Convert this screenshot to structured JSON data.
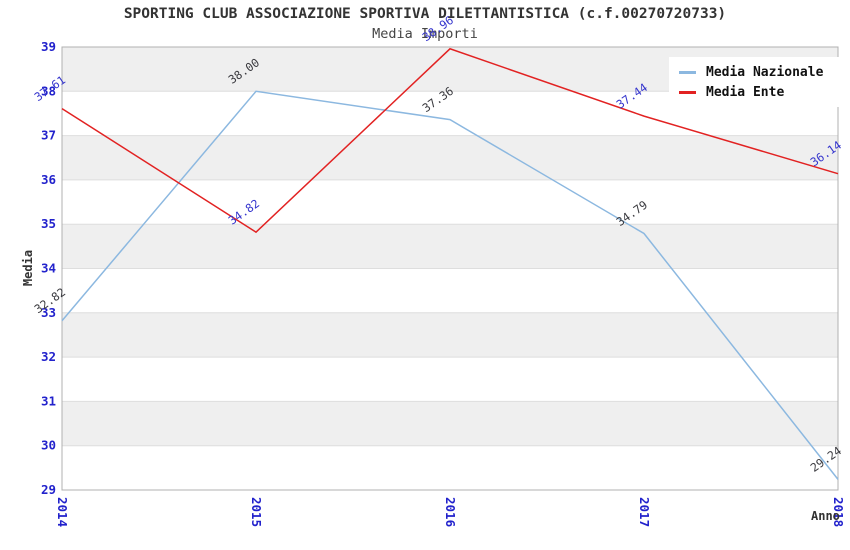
{
  "title": "SPORTING CLUB ASSOCIAZIONE SPORTIVA DILETTANTISTICA (c.f.00270720733)",
  "subtitle": "Media Importi",
  "axes": {
    "x_label": "Anno",
    "y_label": "Media"
  },
  "legend": {
    "position": "top-right",
    "items": [
      {
        "label": "Media Nazionale",
        "color": "#8cb8e0"
      },
      {
        "label": "Media Ente",
        "color": "#e22222"
      }
    ]
  },
  "chart_data": {
    "type": "line",
    "title": "SPORTING CLUB ASSOCIAZIONE SPORTIVA DILETTANTISTICA (c.f.00270720733)",
    "subtitle": "Media Importi",
    "xlabel": "Anno",
    "ylabel": "Media",
    "x": [
      "2014",
      "2015",
      "2016",
      "2017",
      "2018"
    ],
    "series": [
      {
        "name": "Media Nazionale",
        "color": "#8cb8e0",
        "label_color": "#3a3a3f",
        "values": [
          32.82,
          38.0,
          37.36,
          34.79,
          29.24
        ]
      },
      {
        "name": "Media Ente",
        "color": "#e22222",
        "label_color": "#3535cd",
        "values": [
          37.61,
          34.82,
          38.96,
          37.44,
          36.14
        ]
      }
    ],
    "ylim": [
      29,
      39
    ],
    "y_tick_step": 1,
    "grid": true,
    "legend_position": "top-right",
    "band_color": "#efefef",
    "grid_color": "#dedede",
    "border_color": "#b0b0b0",
    "tick_color": "#2222cc"
  }
}
